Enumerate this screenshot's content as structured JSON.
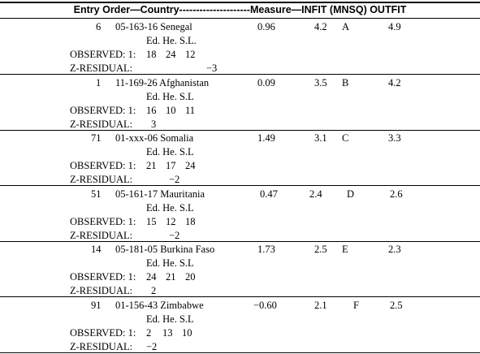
{
  "header": "Entry Order—Country---------------------Measure—INFIT (MNSQ) OUTFIT",
  "observed_label": "OBSERVED: 1:",
  "zresidual_label": "Z-RESIDUAL:",
  "column_codes": "Ed. He. S.L",
  "rows": [
    {
      "entry": "6",
      "code": "05-163-16 Senegal",
      "codes": "Ed. He. S.L.",
      "measure": "0.96",
      "infit": "4.2",
      "grade": "A",
      "outfit": "4.9",
      "observed": [
        "18",
        "24",
        "12"
      ],
      "z": "−3"
    },
    {
      "entry": "1",
      "code": "11-169-26 Afghanistan",
      "codes": "Ed. He. S.L",
      "measure": "0.09",
      "infit": "3.5",
      "grade": "B",
      "outfit": "4.2",
      "observed": [
        "16",
        "10",
        "11"
      ],
      "z": "3"
    },
    {
      "entry": "71",
      "code": "01-xxx-06 Somalia",
      "codes": "Ed. He. S.L",
      "measure": "1.49",
      "infit": "3.1",
      "grade": "C",
      "outfit": "3.3",
      "observed": [
        "21",
        "17",
        "24"
      ],
      "z": "−2"
    },
    {
      "entry": "51",
      "code": "05-161-17 Mauritania",
      "codes": "Ed. He. S.L",
      "measure": "0.47",
      "infit": "2.4",
      "grade": "D",
      "outfit": "2.6",
      "observed": [
        "15",
        "12",
        "18"
      ],
      "z": "−2"
    },
    {
      "entry": "14",
      "code": "05-181-05 Burkina Faso",
      "codes": "Ed. He. S.L",
      "measure": "1.73",
      "infit": "2.5",
      "grade": "E",
      "outfit": "2.3",
      "observed": [
        "24",
        "21",
        "20"
      ],
      "z": "2"
    },
    {
      "entry": "91",
      "code": "01-156-43 Zimbabwe",
      "codes": "Ed. He. S.L",
      "measure": "−0.60",
      "infit": "2.1",
      "grade": "F",
      "outfit": "2.5",
      "observed": [
        "2",
        "13",
        "10"
      ],
      "z": "−2"
    }
  ]
}
